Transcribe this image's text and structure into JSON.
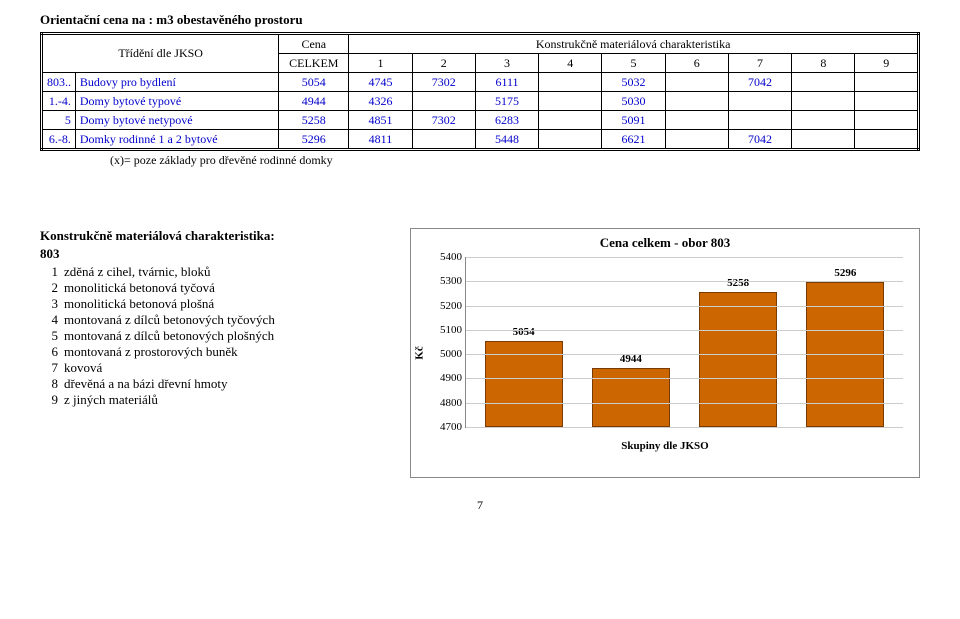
{
  "title": "Orientační cena na : m3 obestavěného prostoru",
  "table": {
    "header": {
      "left": "Třídění dle JKSO",
      "cena": "Cena",
      "celkem": "CELKEM",
      "right": "Konstrukčně materiálová charakteristika",
      "cols": [
        "1",
        "2",
        "3",
        "4",
        "5",
        "6",
        "7",
        "8",
        "9"
      ]
    },
    "rows": [
      {
        "num": "803..",
        "label": "Budovy pro bydlení",
        "celkem": "5054",
        "c": [
          "4745",
          "7302",
          "6111",
          "",
          "5032",
          "",
          "7042",
          "",
          ""
        ]
      },
      {
        "num": "1.-4.",
        "label": "Domy bytové typové",
        "celkem": "4944",
        "c": [
          "4326",
          "",
          "5175",
          "",
          "5030",
          "",
          "",
          "",
          ""
        ]
      },
      {
        "num": "5",
        "label": "Domy bytové netypové",
        "celkem": "5258",
        "c": [
          "4851",
          "7302",
          "6283",
          "",
          "5091",
          "",
          "",
          "",
          ""
        ]
      },
      {
        "num": "6.-8.",
        "label": "Domky rodinné 1 a 2 bytové",
        "celkem": "5296",
        "c": [
          "4811",
          "",
          "5448",
          "",
          "6621",
          "",
          "7042",
          "",
          ""
        ]
      }
    ],
    "note": "(x)= poze základy pro dřevěné rodinné domky"
  },
  "legend": {
    "heading": "Konstrukčně materiálová charakteristika:",
    "code": "803",
    "items": [
      {
        "n": "1",
        "t": "zděná z cihel, tvárnic, bloků"
      },
      {
        "n": "2",
        "t": "monolitická betonová tyčová"
      },
      {
        "n": "3",
        "t": "monolitická betonová plošná"
      },
      {
        "n": "4",
        "t": "montovaná z dílců betonových tyčových"
      },
      {
        "n": "5",
        "t": "montovaná z dílců betonových plošných"
      },
      {
        "n": "6",
        "t": "montovaná z prostorových buněk"
      },
      {
        "n": "7",
        "t": "kovová"
      },
      {
        "n": "8",
        "t": "dřevěná a na bázi dřevní hmoty"
      },
      {
        "n": "9",
        "t": "z jiných materiálů"
      }
    ]
  },
  "chart": {
    "title": "Cena celkem - obor 803",
    "ylabel": "Kč",
    "xlabel": "Skupiny dle JKSO",
    "ymin": 4700,
    "ymax": 5400,
    "ystep": 100,
    "bar_color": "#cc6600",
    "bar_border": "#7a3b00",
    "grid_color": "#cccccc",
    "bars": [
      {
        "label": "5054",
        "value": 5054
      },
      {
        "label": "4944",
        "value": 4944
      },
      {
        "label": "5258",
        "value": 5258
      },
      {
        "label": "5296",
        "value": 5296
      }
    ]
  },
  "page_number": "7"
}
